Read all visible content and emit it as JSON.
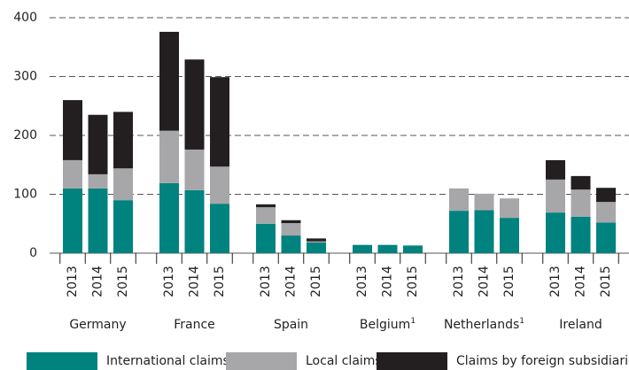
{
  "chart_data": {
    "type": "stacked_bar",
    "groups": [
      {
        "label": "Germany"
      },
      {
        "label": "France"
      },
      {
        "label": "Spain"
      },
      {
        "label": "Belgium",
        "note": "1"
      },
      {
        "label": "Netherlands",
        "note": "1"
      },
      {
        "label": "Ireland"
      }
    ],
    "categories": [
      "2013",
      "2014",
      "2015",
      "2013",
      "2014",
      "2015",
      "2013",
      "2014",
      "2015",
      "2013",
      "2014",
      "2015",
      "2013",
      "2014",
      "2015",
      "2013",
      "2014",
      "2015"
    ],
    "series": [
      {
        "name": "International claims",
        "color": "#00827f",
        "values": [
          110,
          110,
          90,
          119,
          107,
          84,
          50,
          30,
          18,
          14,
          14,
          13,
          72,
          73,
          60,
          69,
          62,
          52
        ]
      },
      {
        "name": "Local claims",
        "color": "#a7a7a9",
        "values": [
          48,
          24,
          54,
          89,
          69,
          63,
          28,
          21,
          2,
          0,
          0,
          0,
          38,
          28,
          33,
          56,
          46,
          35
        ]
      },
      {
        "name": "Claims by foreign subsidiaries",
        "color": "#231f20",
        "values": [
          102,
          101,
          96,
          168,
          153,
          152,
          5,
          5,
          5,
          0,
          0,
          0,
          0,
          0,
          0,
          33,
          23,
          24
        ]
      }
    ],
    "ylim": [
      0,
      400
    ],
    "yticks": [
      0,
      100,
      200,
      300,
      400
    ],
    "grid": true
  }
}
